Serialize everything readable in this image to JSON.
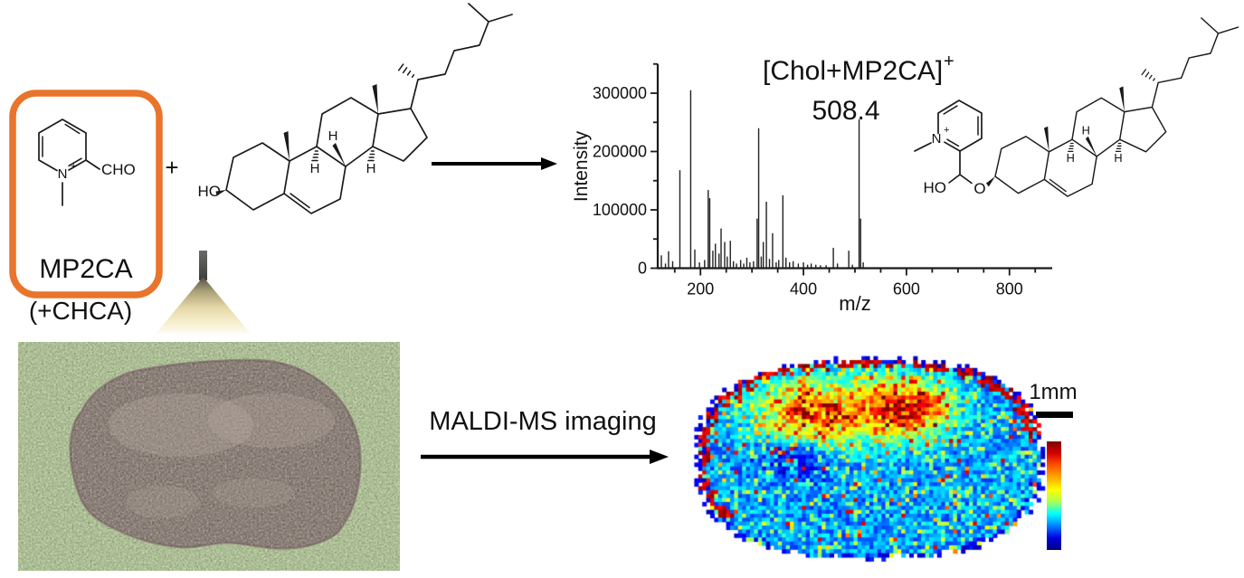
{
  "labels": {
    "mp2ca": "MP2CA",
    "chca": "(+CHCA)",
    "plus": "+",
    "cho": "CHO",
    "n": "N",
    "charge": "+",
    "ho": "HO",
    "o": "O",
    "h": "H",
    "maldi": "MALDI-MS imaging",
    "scale_bar": "1mm",
    "adduct": "[Chol+MP2CA]",
    "adduct_charge": "+",
    "adduct_mz": "508.4"
  },
  "colors": {
    "box_border": "#E8752B",
    "structure": "#1a1a1a",
    "tissue_bg": "#b5cd96",
    "tissue": "#a89b92",
    "colorbar": [
      "#7f0000",
      "#d40000",
      "#ff5500",
      "#ffaa00",
      "#ffff00",
      "#aaff55",
      "#00ffff",
      "#0080ff",
      "#0000e0",
      "#00007f"
    ]
  },
  "chart_data": {
    "type": "bar",
    "title": "[Chol+MP2CA]+",
    "annotation": "508.4",
    "xlabel": "m/z",
    "ylabel": "Intensity",
    "xlim": [
      117,
      883
    ],
    "ylim": [
      0,
      350000
    ],
    "x_ticks": [
      200,
      400,
      600,
      800
    ],
    "x_minor_step": 50,
    "y_ticks": [
      0,
      100000,
      200000,
      300000
    ],
    "y_minor_step": 50000,
    "grid": false,
    "legend": false,
    "peaks": [
      [
        124,
        22000
      ],
      [
        132,
        8000
      ],
      [
        138,
        29000
      ],
      [
        146,
        12000
      ],
      [
        160,
        168000
      ],
      [
        181,
        305000
      ],
      [
        189,
        32000
      ],
      [
        198,
        10000
      ],
      [
        208,
        14000
      ],
      [
        215,
        134000
      ],
      [
        218,
        120000
      ],
      [
        224,
        30000
      ],
      [
        229,
        42000
      ],
      [
        236,
        25000
      ],
      [
        240,
        68000
      ],
      [
        247,
        45000
      ],
      [
        252,
        20000
      ],
      [
        258,
        47000
      ],
      [
        264,
        12000
      ],
      [
        270,
        8000
      ],
      [
        278,
        14000
      ],
      [
        284,
        8000
      ],
      [
        290,
        18000
      ],
      [
        296,
        10000
      ],
      [
        303,
        12000
      ],
      [
        310,
        85000
      ],
      [
        313,
        240000
      ],
      [
        318,
        20000
      ],
      [
        322,
        45000
      ],
      [
        328,
        114000
      ],
      [
        334,
        16000
      ],
      [
        340,
        60000
      ],
      [
        347,
        10000
      ],
      [
        352,
        14000
      ],
      [
        360,
        125000
      ],
      [
        366,
        18000
      ],
      [
        373,
        10000
      ],
      [
        380,
        12000
      ],
      [
        390,
        8000
      ],
      [
        400,
        10000
      ],
      [
        408,
        6000
      ],
      [
        415,
        8000
      ],
      [
        424,
        6000
      ],
      [
        433,
        5000
      ],
      [
        444,
        5000
      ],
      [
        458,
        35000
      ],
      [
        466,
        8000
      ],
      [
        488,
        30000
      ],
      [
        495,
        6000
      ],
      [
        508,
        255000
      ],
      [
        511,
        85000
      ],
      [
        516,
        10000
      ]
    ]
  },
  "ms_image": {
    "description": "MALDI-MS ion image (jet colormap) of the tissue section; hot band and two red foci along the upper cortex, dark-red rim arc along upper edge, blue body",
    "seed": 123,
    "grid": [
      90,
      56
    ],
    "hot_regions": [
      [
        -0.32,
        -0.4
      ],
      [
        0.2,
        -0.45
      ]
    ],
    "cold_region": [
      -0.42,
      -0.02
    ]
  }
}
